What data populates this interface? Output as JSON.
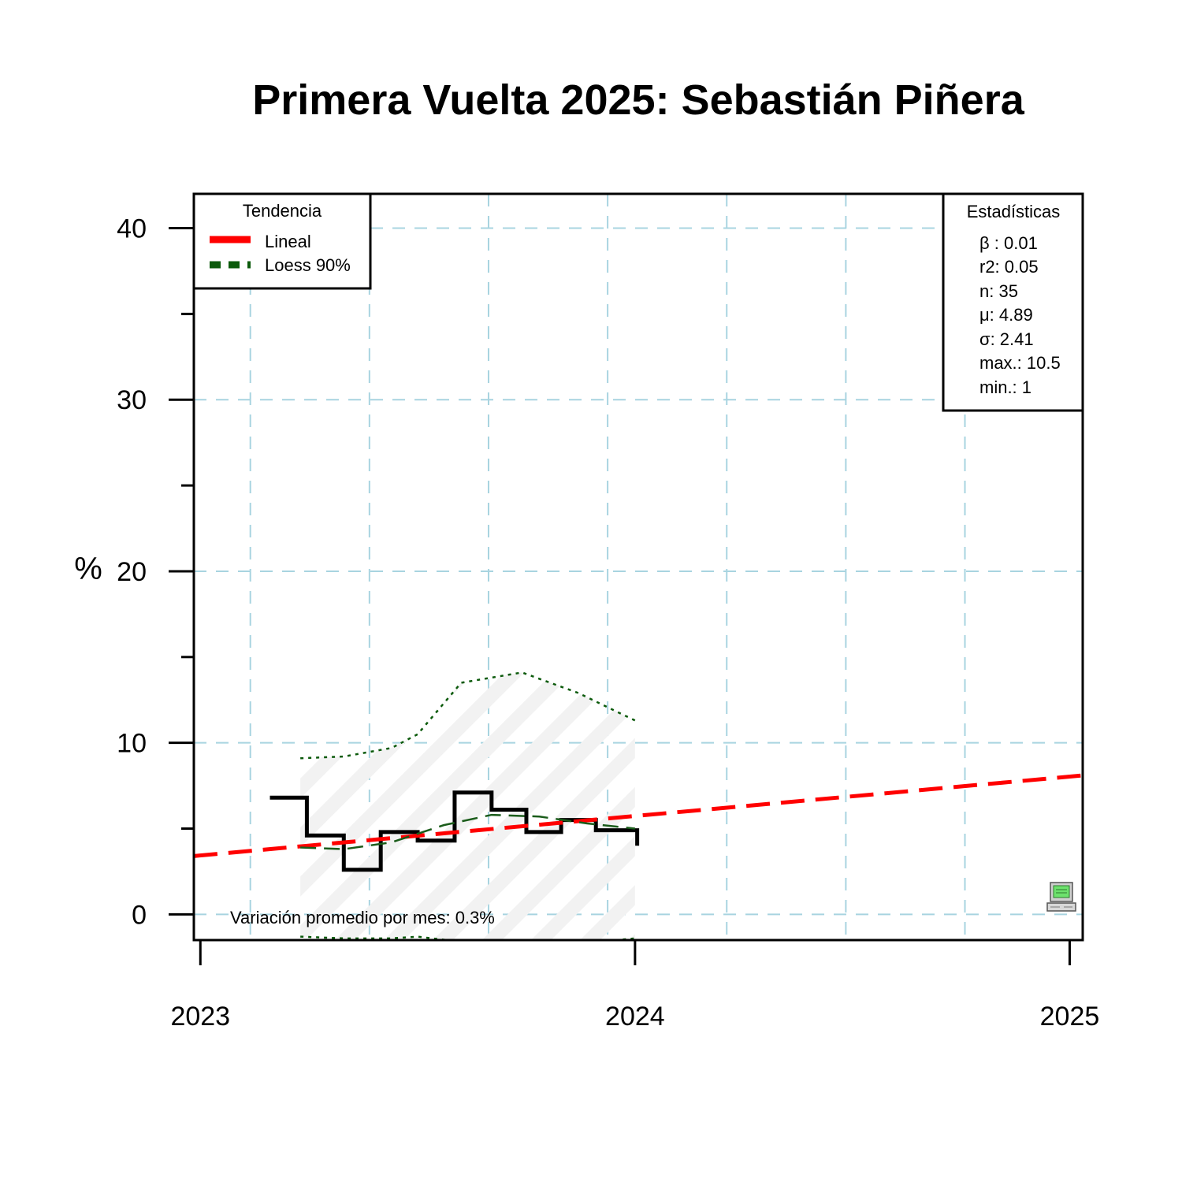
{
  "chart_data": {
    "type": "line",
    "title": "Primera Vuelta 2025: Sebastián Piñera",
    "ylabel": "%",
    "xlabel": "",
    "ylim": [
      -1.5,
      42
    ],
    "xlim": [
      2022.985,
      2025.03
    ],
    "x_ticks": [
      2023,
      2024,
      2025
    ],
    "x_tick_labels": [
      "2023",
      "2024",
      "2025"
    ],
    "y_ticks": [
      0,
      10,
      20,
      30,
      40
    ],
    "y_tick_labels": [
      "0",
      "10",
      "20",
      "30",
      "40"
    ],
    "y_minor_ticks": [
      5,
      15,
      25,
      35
    ],
    "grid": true,
    "grid_x": [
      2023.115,
      2023.389,
      2023.663,
      2023.937,
      2024.211,
      2024.485,
      2024.759
    ],
    "grid_y": [
      0,
      10,
      20,
      30,
      40
    ],
    "series": [
      {
        "name": "",
        "style": "step",
        "color": "#000000",
        "x": [
          2023.16,
          2023.245,
          2023.33,
          2023.415,
          2023.5,
          2023.585,
          2023.67,
          2023.75,
          2023.83,
          2023.91,
          2023.98,
          2024.005
        ],
        "y": [
          6.8,
          4.6,
          2.6,
          4.8,
          4.3,
          7.1,
          6.1,
          4.8,
          5.5,
          4.9,
          4.9,
          4.0
        ]
      },
      {
        "name": "Lineal",
        "style": "dashed",
        "color": "#ff0000",
        "x": [
          2022.985,
          2025.03
        ],
        "y": [
          3.4,
          8.1
        ]
      },
      {
        "name": "Loess 90%",
        "style": "dashed",
        "color": "#1a5c1a",
        "x": [
          2023.23,
          2023.33,
          2023.44,
          2023.56,
          2023.67,
          2023.78,
          2023.89,
          2024.0
        ],
        "y": [
          3.9,
          3.8,
          4.2,
          5.2,
          5.8,
          5.7,
          5.3,
          5.0
        ]
      },
      {
        "name": "",
        "style": "dotted",
        "color": "#0b5a0b",
        "role": "upper-band",
        "x": [
          2023.23,
          2023.33,
          2023.44,
          2023.5,
          2023.6,
          2023.74,
          2023.87,
          2024.0
        ],
        "y": [
          9.1,
          9.2,
          9.7,
          10.5,
          13.5,
          14.1,
          12.9,
          11.3
        ]
      },
      {
        "name": "",
        "style": "dotted",
        "color": "#0b5a0b",
        "role": "lower-band",
        "x": [
          2023.23,
          2023.33,
          2023.44,
          2023.5,
          2023.6,
          2023.74,
          2023.87,
          2024.0
        ],
        "y": [
          -1.3,
          -1.4,
          -1.4,
          -1.3,
          -1.6,
          -1.7,
          -1.7,
          -1.4
        ]
      }
    ],
    "band_fill": "#f2f2f2",
    "legend": {
      "position": "top-left",
      "title": "Tendencia",
      "items": [
        {
          "label": "Lineal",
          "color": "#ff0000",
          "style": "dashed"
        },
        {
          "label": "Loess 90%",
          "color": "#0b5a0b",
          "style": "dashed"
        }
      ]
    },
    "stats_box": {
      "position": "top-right",
      "title": "Estadísticas",
      "lines": [
        "β : 0.01",
        "r2: 0.05",
        "n: 35",
        "μ: 4.89",
        "σ: 2.41",
        "max.: 10.5",
        "min.: 1"
      ]
    },
    "annotation": "Variación promedio por mes: 0.3%",
    "computer_icon": "computer-icon",
    "colors": {
      "grid": "#a8d4e0",
      "frame": "#000000"
    }
  }
}
